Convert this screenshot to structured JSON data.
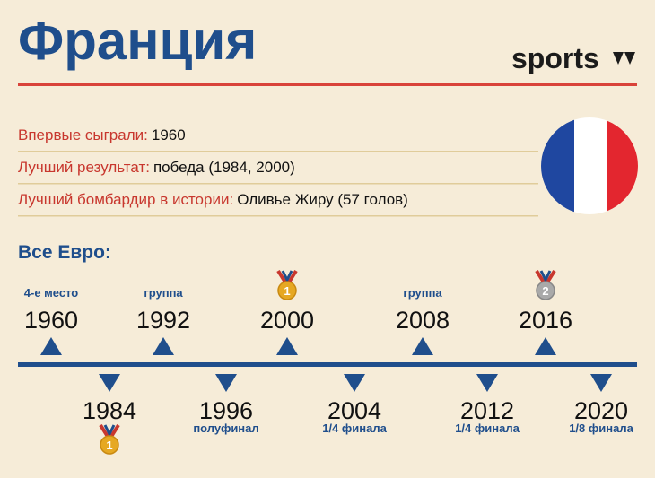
{
  "header": {
    "title": "Франция",
    "logo": "sports"
  },
  "facts": [
    {
      "label": "Впервые сыграли:",
      "value": "1960"
    },
    {
      "label": "Лучший результат:",
      "value": "победа (1984, 2000)"
    },
    {
      "label": "Лучший бомбардир в истории:",
      "value": "Оливье Жиру (57 голов)"
    }
  ],
  "timeline": {
    "title": "Все Евро:",
    "top": [
      {
        "year": "1960",
        "result": "4-е место"
      },
      {
        "year": "1992",
        "result": "группа"
      },
      {
        "year": "2000",
        "medal": "1"
      },
      {
        "year": "2008",
        "result": "группа"
      },
      {
        "year": "2016",
        "medal": "2"
      }
    ],
    "bottom": [
      {
        "year": "1984",
        "medal": "1"
      },
      {
        "year": "1996",
        "result": "полуфинал"
      },
      {
        "year": "2004",
        "result": "1/4 финала"
      },
      {
        "year": "2012",
        "result": "1/4 финала"
      },
      {
        "year": "2020",
        "result": "1/8 финала"
      }
    ]
  }
}
